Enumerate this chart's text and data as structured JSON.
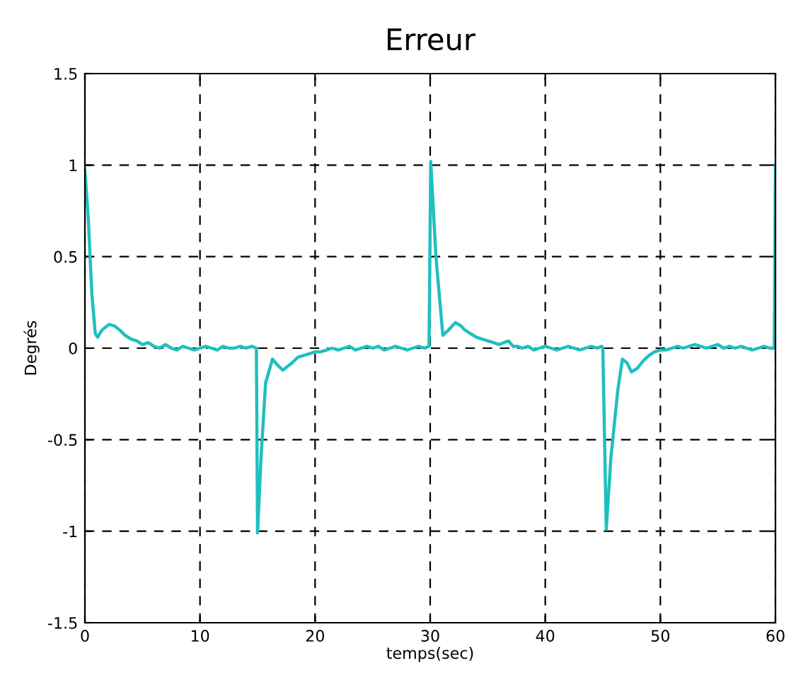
{
  "chart_data": {
    "type": "line",
    "title": "Erreur",
    "xlabel": "temps(sec)",
    "ylabel": "Degrés",
    "xlim": [
      0,
      60
    ],
    "ylim": [
      -1.5,
      1.5
    ],
    "xticks": [
      0,
      10,
      20,
      30,
      40,
      50,
      60
    ],
    "yticks": [
      -1.5,
      -1,
      -0.5,
      0,
      0.5,
      1,
      1.5
    ],
    "grid": true,
    "line_style": "solid",
    "marker": "none",
    "series": [
      {
        "color": "#1fbfbf",
        "x": [
          0,
          0.3,
          0.6,
          0.9,
          1.1,
          1.5,
          2.1,
          2.6,
          3,
          3.5,
          4,
          4.5,
          5,
          5.5,
          6,
          6.5,
          7,
          7.5,
          8,
          8.5,
          9,
          9.5,
          10,
          10.5,
          11,
          11.5,
          12,
          12.5,
          13,
          13.5,
          14,
          14.5,
          14.9,
          15.0,
          15.3,
          15.7,
          16.3,
          16.7,
          17.2,
          17.6,
          18,
          18.5,
          19,
          19.5,
          20,
          20.5,
          21,
          21.5,
          22,
          22.5,
          23,
          23.5,
          24,
          24.5,
          25,
          25.5,
          26,
          26.5,
          27,
          27.5,
          28,
          28.5,
          29,
          29.5,
          29.9,
          30.05,
          30.5,
          31.1,
          31.6,
          32.2,
          32.7,
          33,
          33.5,
          34,
          34.5,
          35,
          35.5,
          36,
          36.4,
          36.8,
          37.2,
          37.6,
          38,
          38.5,
          39,
          39.5,
          40,
          40.5,
          41,
          41.5,
          42,
          42.5,
          43,
          43.5,
          44,
          44.5,
          44.9,
          45.0,
          45.3,
          45.7,
          46.3,
          46.7,
          47.1,
          47.5,
          48,
          48.5,
          49,
          49.5,
          50,
          50.5,
          51,
          51.5,
          52,
          52.5,
          53,
          53.5,
          54,
          54.5,
          55,
          55.5,
          56,
          56.5,
          57,
          57.5,
          58,
          58.5,
          59,
          59.5,
          59.9,
          60
        ],
        "values": [
          0.97,
          0.7,
          0.3,
          0.08,
          0.06,
          0.1,
          0.13,
          0.12,
          0.1,
          0.07,
          0.05,
          0.04,
          0.02,
          0.03,
          0.01,
          0.0,
          0.02,
          0.0,
          -0.01,
          0.01,
          0.0,
          -0.01,
          0.0,
          0.01,
          0.0,
          -0.01,
          0.01,
          0.0,
          0.0,
          0.01,
          0.0,
          0.01,
          0.0,
          -1.01,
          -0.6,
          -0.19,
          -0.06,
          -0.09,
          -0.12,
          -0.1,
          -0.08,
          -0.05,
          -0.04,
          -0.03,
          -0.02,
          -0.02,
          -0.01,
          0.0,
          -0.01,
          0.0,
          0.01,
          -0.01,
          0.0,
          0.01,
          0.0,
          0.01,
          -0.01,
          0.0,
          0.01,
          0.0,
          -0.01,
          0.0,
          0.01,
          0.0,
          0.01,
          1.02,
          0.5,
          0.07,
          0.1,
          0.14,
          0.12,
          0.1,
          0.08,
          0.06,
          0.05,
          0.04,
          0.03,
          0.02,
          0.03,
          0.04,
          0.01,
          0.01,
          0.0,
          0.01,
          -0.01,
          0.0,
          0.01,
          0.0,
          -0.01,
          0.0,
          0.01,
          0.0,
          -0.01,
          0.0,
          0.01,
          0.0,
          0.01,
          0.0,
          -0.99,
          -0.6,
          -0.23,
          -0.06,
          -0.08,
          -0.13,
          -0.11,
          -0.07,
          -0.04,
          -0.02,
          -0.01,
          -0.01,
          0.0,
          0.01,
          0.0,
          0.01,
          0.02,
          0.01,
          0.0,
          0.01,
          0.02,
          0.0,
          0.01,
          0.0,
          0.01,
          0.0,
          -0.01,
          0.0,
          0.01,
          0.0,
          0.0,
          1.0
        ]
      }
    ]
  }
}
